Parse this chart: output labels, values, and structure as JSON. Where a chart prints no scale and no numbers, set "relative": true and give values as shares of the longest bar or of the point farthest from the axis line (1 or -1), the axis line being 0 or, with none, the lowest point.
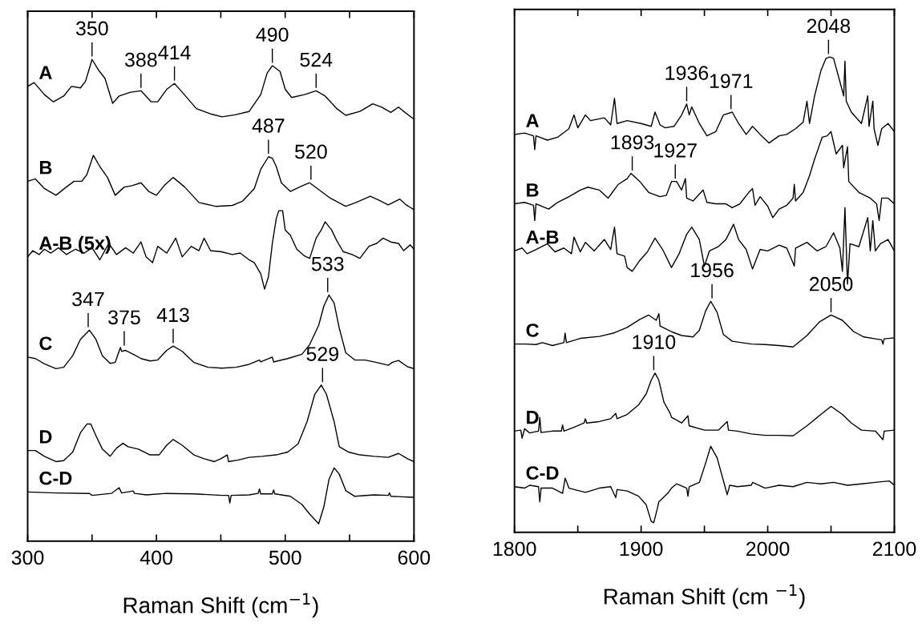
{
  "chart_data": [
    {
      "type": "line",
      "relative": true,
      "tick_labels": "x",
      "xlabel": "Raman Shift (cm$^{−1}$)",
      "xlim": [
        300,
        600
      ],
      "xticks": [
        300,
        {
          "value": 350,
          "label": null
        },
        400,
        {
          "value": 450,
          "label": null
        },
        500,
        {
          "value": 550,
          "label": null
        },
        600
      ],
      "series": [
        {
          "name": "A",
          "color": "#000000",
          "x": [
            300,
            305,
            313,
            320,
            328,
            334,
            341,
            345,
            350,
            355,
            360,
            366,
            371,
            380,
            388,
            396,
            401,
            408,
            414,
            420,
            431,
            442,
            451,
            461,
            472,
            481,
            486,
            490,
            496,
            500,
            505,
            515,
            524,
            531,
            540,
            547,
            558,
            568,
            575,
            582,
            588,
            593,
            600
          ],
          "values": [
            0.944,
            0.952,
            0.927,
            0.912,
            0.924,
            0.944,
            0.941,
            0.955,
            1.0,
            0.978,
            0.961,
            0.909,
            0.924,
            0.932,
            0.935,
            0.912,
            0.912,
            0.938,
            0.95,
            0.932,
            0.898,
            0.887,
            0.881,
            0.885,
            0.892,
            0.927,
            0.972,
            0.987,
            0.975,
            0.938,
            0.921,
            0.927,
            0.935,
            0.924,
            0.898,
            0.884,
            0.892,
            0.908,
            0.901,
            0.89,
            0.901,
            0.89,
            0.876
          ]
        },
        {
          "name": "B",
          "color": "#000000",
          "x": [
            300,
            306,
            313,
            322,
            330,
            336,
            342,
            346,
            351,
            356,
            362,
            368,
            375,
            381,
            388,
            394,
            400,
            406,
            413,
            422,
            433,
            446,
            459,
            467,
            476,
            481,
            487,
            490,
            493,
            497,
            504,
            511,
            519,
            525,
            535,
            547,
            555,
            566,
            572,
            580,
            589,
            594,
            600
          ],
          "values": [
            0.747,
            0.752,
            0.732,
            0.718,
            0.735,
            0.747,
            0.747,
            0.761,
            0.801,
            0.778,
            0.755,
            0.718,
            0.735,
            0.738,
            0.744,
            0.726,
            0.718,
            0.738,
            0.755,
            0.735,
            0.703,
            0.695,
            0.697,
            0.706,
            0.732,
            0.772,
            0.798,
            0.795,
            0.778,
            0.744,
            0.726,
            0.735,
            0.744,
            0.732,
            0.712,
            0.695,
            0.703,
            0.716,
            0.709,
            0.698,
            0.71,
            0.698,
            0.688
          ]
        },
        {
          "name": "A-B (5x)",
          "color": "#000000",
          "x": [
            300,
            304,
            309,
            313,
            318,
            324,
            330,
            337,
            344,
            350,
            356,
            363,
            369,
            376,
            382,
            388,
            392,
            397,
            401,
            408,
            415,
            420,
            427,
            433,
            437,
            442,
            450,
            459,
            465,
            472,
            476,
            481,
            484,
            487,
            490,
            493,
            495,
            498,
            500,
            504,
            509,
            515,
            519,
            524,
            528,
            531,
            536,
            540,
            545,
            552,
            558,
            565,
            571,
            576,
            582,
            588,
            592,
            597,
            600
          ],
          "values": [
            0.59,
            0.603,
            0.595,
            0.606,
            0.598,
            0.609,
            0.595,
            0.606,
            0.598,
            0.609,
            0.584,
            0.618,
            0.595,
            0.609,
            0.598,
            0.621,
            0.59,
            0.578,
            0.612,
            0.598,
            0.629,
            0.59,
            0.612,
            0.603,
            0.629,
            0.603,
            0.601,
            0.595,
            0.598,
            0.584,
            0.578,
            0.555,
            0.523,
            0.549,
            0.618,
            0.669,
            0.686,
            0.686,
            0.646,
            0.635,
            0.606,
            0.592,
            0.587,
            0.629,
            0.646,
            0.663,
            0.646,
            0.624,
            0.601,
            0.595,
            0.587,
            0.612,
            0.618,
            0.629,
            0.621,
            0.618,
            0.603,
            0.615,
            0.606
          ]
        },
        {
          "name": "C",
          "color": "#000000",
          "x": [
            300,
            306,
            313,
            322,
            328,
            335,
            341,
            348,
            353,
            358,
            364,
            368,
            372,
            373,
            376,
            382,
            388,
            395,
            401,
            408,
            413,
            420,
            429,
            440,
            451,
            462,
            472,
            480,
            481,
            490,
            491,
            502,
            513,
            519,
            526,
            530,
            534,
            538,
            542,
            547,
            554,
            562,
            571,
            580,
            583,
            588,
            595,
            600
          ],
          "values": [
            0.382,
            0.379,
            0.368,
            0.358,
            0.361,
            0.385,
            0.419,
            0.438,
            0.419,
            0.385,
            0.369,
            0.371,
            0.402,
            0.394,
            0.396,
            0.388,
            0.379,
            0.374,
            0.376,
            0.396,
            0.405,
            0.394,
            0.371,
            0.361,
            0.359,
            0.361,
            0.367,
            0.376,
            0.372,
            0.382,
            0.372,
            0.379,
            0.388,
            0.408,
            0.448,
            0.488,
            0.511,
            0.494,
            0.442,
            0.391,
            0.376,
            0.376,
            0.371,
            0.365,
            0.371,
            0.375,
            0.362,
            0.358
          ]
        },
        {
          "name": "D",
          "color": "#000000",
          "x": [
            300,
            306,
            313,
            322,
            328,
            335,
            341,
            346,
            349,
            353,
            358,
            364,
            369,
            374,
            378,
            386,
            395,
            402,
            408,
            413,
            420,
            429,
            437,
            445,
            450,
            455,
            456,
            463,
            472,
            482,
            493,
            502,
            510,
            517,
            523,
            528,
            532,
            538,
            542,
            549,
            558,
            569,
            580,
            588,
            595,
            600
          ],
          "values": [
            0.188,
            0.188,
            0.176,
            0.165,
            0.167,
            0.185,
            0.225,
            0.243,
            0.243,
            0.219,
            0.191,
            0.176,
            0.193,
            0.203,
            0.196,
            0.191,
            0.179,
            0.179,
            0.199,
            0.211,
            0.199,
            0.179,
            0.171,
            0.165,
            0.171,
            0.179,
            0.165,
            0.168,
            0.174,
            0.176,
            0.179,
            0.185,
            0.202,
            0.248,
            0.305,
            0.324,
            0.305,
            0.248,
            0.196,
            0.185,
            0.179,
            0.176,
            0.174,
            0.182,
            0.171,
            0.165
          ]
        },
        {
          "name": "C-D",
          "color": "#000000",
          "x": [
            300,
            322,
            348,
            350,
            365,
            371,
            373,
            382,
            383,
            392,
            408,
            429,
            451,
            456,
            457,
            458,
            472,
            479,
            480,
            481,
            490,
            491,
            492,
            504,
            513,
            519,
            526,
            530,
            534,
            538,
            542,
            547,
            554,
            569,
            580,
            581,
            582,
            590,
            600
          ],
          "values": [
            0.102,
            0.1,
            0.099,
            0.095,
            0.099,
            0.111,
            0.1,
            0.104,
            0.099,
            0.096,
            0.099,
            0.098,
            0.095,
            0.095,
            0.079,
            0.095,
            0.096,
            0.099,
            0.108,
            0.098,
            0.098,
            0.106,
            0.098,
            0.093,
            0.076,
            0.056,
            0.036,
            0.071,
            0.128,
            0.152,
            0.139,
            0.105,
            0.093,
            0.096,
            0.095,
            0.1,
            0.093,
            0.092,
            0.091
          ]
        }
      ],
      "annotations": [
        {
          "text": "350",
          "x": 350,
          "y": 1.0
        },
        {
          "text": "388",
          "x": 388,
          "y": 0.935
        },
        {
          "text": "414",
          "x": 414,
          "y": 0.95
        },
        {
          "text": "490",
          "x": 490,
          "y": 0.987
        },
        {
          "text": "524",
          "x": 524,
          "y": 0.935
        },
        {
          "text": "487",
          "x": 487,
          "y": 0.798
        },
        {
          "text": "520",
          "x": 520,
          "y": 0.744
        },
        {
          "text": "347",
          "x": 347,
          "y": 0.438
        },
        {
          "text": "375",
          "x": 375,
          "y": 0.4
        },
        {
          "text": "413",
          "x": 413,
          "y": 0.405
        },
        {
          "text": "533",
          "x": 533,
          "y": 0.511
        },
        {
          "text": "529",
          "x": 529,
          "y": 0.324
        }
      ]
    },
    {
      "type": "line",
      "relative": true,
      "tick_labels": "x",
      "xlabel": "Raman Shift (cm $^{−1}$)",
      "xlim": [
        1800,
        2100
      ],
      "xticks": [
        1800,
        {
          "value": 1850,
          "label": null
        },
        1900,
        {
          "value": 1950,
          "label": null
        },
        2000,
        {
          "value": 2050,
          "label": null
        },
        2100
      ],
      "series": [
        {
          "name": "A",
          "color": "#000000",
          "x": [
            1800,
            1808,
            1815,
            1816,
            1817,
            1826,
            1834,
            1843,
            1847,
            1850,
            1856,
            1860,
            1871,
            1876,
            1879,
            1881,
            1889,
            1900,
            1908,
            1911,
            1915,
            1919,
            1926,
            1932,
            1936,
            1938,
            1940,
            1946,
            1952,
            1959,
            1965,
            1972,
            1977,
            1983,
            1988,
            1994,
            2001,
            2009,
            2015,
            2022,
            2028,
            2031,
            2033,
            2037,
            2042,
            2046,
            2049,
            2052,
            2057,
            2060,
            2061,
            2062,
            2066,
            2074,
            2079,
            2080,
            2083,
            2084,
            2087,
            2090,
            2095,
            2100
          ],
          "values": [
            0.837,
            0.84,
            0.834,
            0.805,
            0.834,
            0.825,
            0.831,
            0.849,
            0.878,
            0.851,
            0.878,
            0.866,
            0.872,
            0.857,
            0.913,
            0.86,
            0.866,
            0.86,
            0.854,
            0.884,
            0.857,
            0.851,
            0.854,
            0.878,
            0.901,
            0.878,
            0.895,
            0.86,
            0.834,
            0.843,
            0.878,
            0.884,
            0.86,
            0.837,
            0.854,
            0.837,
            0.819,
            0.834,
            0.837,
            0.849,
            0.863,
            0.907,
            0.86,
            0.918,
            0.971,
            0.997,
            1.0,
            0.997,
            0.948,
            0.918,
            0.991,
            0.907,
            0.884,
            0.86,
            0.918,
            0.854,
            0.907,
            0.849,
            0.814,
            0.849,
            0.86,
            0.843
          ]
        },
        {
          "name": "B",
          "color": "#000000",
          "x": [
            1800,
            1808,
            1815,
            1816,
            1817,
            1827,
            1834,
            1843,
            1852,
            1858,
            1867,
            1874,
            1882,
            1889,
            1892,
            1899,
            1906,
            1915,
            1920,
            1924,
            1928,
            1932,
            1935,
            1936,
            1941,
            1949,
            1952,
            1959,
            1967,
            1972,
            1978,
            1985,
            1988,
            1990,
            1994,
            2000,
            2004,
            2009,
            2015,
            2020,
            2021,
            2022,
            2028,
            2033,
            2037,
            2043,
            2047,
            2050,
            2054,
            2059,
            2060,
            2063,
            2064,
            2072,
            2081,
            2086,
            2088,
            2090,
            2095,
            2100
          ],
          "values": [
            0.691,
            0.694,
            0.688,
            0.656,
            0.691,
            0.68,
            0.694,
            0.706,
            0.72,
            0.726,
            0.72,
            0.703,
            0.732,
            0.744,
            0.755,
            0.738,
            0.715,
            0.706,
            0.709,
            0.738,
            0.738,
            0.72,
            0.744,
            0.703,
            0.697,
            0.72,
            0.694,
            0.691,
            0.691,
            0.683,
            0.691,
            0.715,
            0.723,
            0.688,
            0.706,
            0.686,
            0.662,
            0.68,
            0.688,
            0.703,
            0.732,
            0.697,
            0.715,
            0.75,
            0.785,
            0.831,
            0.834,
            0.843,
            0.796,
            0.814,
            0.767,
            0.811,
            0.738,
            0.715,
            0.703,
            0.691,
            0.656,
            0.703,
            0.703,
            0.691
          ]
        },
        {
          "name": "A-B",
          "color": "#000000",
          "x": [
            1800,
            1806,
            1810,
            1817,
            1826,
            1832,
            1839,
            1845,
            1847,
            1852,
            1856,
            1863,
            1871,
            1876,
            1879,
            1881,
            1887,
            1889,
            1893,
            1899,
            1905,
            1911,
            1917,
            1924,
            1930,
            1936,
            1940,
            1946,
            1950,
            1954,
            1961,
            1967,
            1973,
            1977,
            1983,
            1988,
            1994,
            2000,
            2009,
            2015,
            2021,
            2022,
            2031,
            2039,
            2046,
            2052,
            2057,
            2059,
            2061,
            2063,
            2065,
            2072,
            2079,
            2081,
            2083,
            2085,
            2089,
            2095,
            2100
          ],
          "values": [
            0.592,
            0.598,
            0.586,
            0.595,
            0.607,
            0.59,
            0.598,
            0.586,
            0.621,
            0.59,
            0.61,
            0.592,
            0.616,
            0.595,
            0.642,
            0.586,
            0.581,
            0.557,
            0.549,
            0.572,
            0.59,
            0.619,
            0.595,
            0.557,
            0.586,
            0.627,
            0.642,
            0.616,
            0.56,
            0.592,
            0.601,
            0.616,
            0.648,
            0.616,
            0.595,
            0.554,
            0.595,
            0.592,
            0.604,
            0.598,
            0.56,
            0.598,
            0.61,
            0.592,
            0.601,
            0.63,
            0.598,
            0.549,
            0.683,
            0.522,
            0.607,
            0.601,
            0.662,
            0.592,
            0.656,
            0.592,
            0.607,
            0.616,
            0.592
          ]
        },
        {
          "name": "C",
          "color": "#000000",
          "x": [
            1800,
            1808,
            1817,
            1822,
            1830,
            1839,
            1840,
            1841,
            1852,
            1867,
            1878,
            1889,
            1899,
            1906,
            1912,
            1914,
            1915,
            1924,
            1932,
            1941,
            1946,
            1951,
            1955,
            1960,
            1965,
            1972,
            1987,
            1998,
            2009,
            2020,
            2031,
            2041,
            2050,
            2059,
            2068,
            2076,
            2085,
            2090,
            2091,
            2092,
            2100
          ],
          "values": [
            0.396,
            0.396,
            0.395,
            0.399,
            0.393,
            0.399,
            0.419,
            0.399,
            0.408,
            0.412,
            0.419,
            0.431,
            0.448,
            0.457,
            0.446,
            0.46,
            0.434,
            0.422,
            0.414,
            0.411,
            0.425,
            0.466,
            0.486,
            0.463,
            0.416,
            0.402,
            0.396,
            0.395,
            0.393,
            0.39,
            0.414,
            0.443,
            0.457,
            0.446,
            0.422,
            0.411,
            0.407,
            0.405,
            0.396,
            0.407,
            0.409
          ]
        },
        {
          "name": "D",
          "color": "#000000",
          "x": [
            1800,
            1805,
            1806,
            1808,
            1812,
            1819,
            1820,
            1821,
            1830,
            1837,
            1838,
            1839,
            1847,
            1855,
            1856,
            1857,
            1867,
            1876,
            1880,
            1881,
            1889,
            1898,
            1904,
            1908,
            1911,
            1914,
            1918,
            1923,
            1924,
            1932,
            1937,
            1938,
            1950,
            1961,
            1968,
            1969,
            1976,
            1987,
            1998,
            2009,
            2020,
            2031,
            2042,
            2050,
            2059,
            2066,
            2074,
            2085,
            2091,
            2092,
            2100
          ],
          "values": [
            0.213,
            0.215,
            0.198,
            0.218,
            0.209,
            0.213,
            0.242,
            0.21,
            0.213,
            0.213,
            0.226,
            0.213,
            0.221,
            0.23,
            0.239,
            0.23,
            0.233,
            0.239,
            0.25,
            0.239,
            0.248,
            0.268,
            0.291,
            0.32,
            0.335,
            0.32,
            0.274,
            0.25,
            0.242,
            0.23,
            0.245,
            0.224,
            0.215,
            0.215,
            0.233,
            0.215,
            0.213,
            0.207,
            0.204,
            0.204,
            0.203,
            0.224,
            0.248,
            0.265,
            0.248,
            0.23,
            0.215,
            0.213,
            0.195,
            0.213,
            0.215
          ]
        },
        {
          "name": "C-D",
          "color": "#000000",
          "x": [
            1800,
            1808,
            1812,
            1819,
            1820,
            1821,
            1830,
            1838,
            1840,
            1843,
            1856,
            1867,
            1876,
            1880,
            1881,
            1889,
            1898,
            1904,
            1908,
            1910,
            1913,
            1914,
            1921,
            1924,
            1928,
            1936,
            1937,
            1938,
            1946,
            1951,
            1955,
            1960,
            1966,
            1968,
            1970,
            1976,
            1987,
            1988,
            1998,
            2009,
            2020,
            2031,
            2042,
            2052,
            2063,
            2074,
            2085,
            2096,
            2100
          ],
          "values": [
            0.096,
            0.093,
            0.099,
            0.096,
            0.064,
            0.093,
            0.093,
            0.082,
            0.114,
            0.093,
            0.084,
            0.093,
            0.096,
            0.073,
            0.09,
            0.087,
            0.076,
            0.058,
            0.023,
            0.02,
            0.052,
            0.064,
            0.082,
            0.093,
            0.102,
            0.093,
            0.076,
            0.096,
            0.105,
            0.146,
            0.181,
            0.157,
            0.099,
            0.079,
            0.099,
            0.096,
            0.099,
            0.105,
            0.093,
            0.099,
            0.096,
            0.105,
            0.102,
            0.105,
            0.099,
            0.102,
            0.105,
            0.108,
            0.099
          ]
        }
      ],
      "annotations": [
        {
          "text": "2048",
          "x": 2048,
          "y": 1.0
        },
        {
          "text": "1936",
          "x": 1936,
          "y": 0.901
        },
        {
          "text": "1971",
          "x": 1971,
          "y": 0.884
        },
        {
          "text": "1893",
          "x": 1893,
          "y": 0.755
        },
        {
          "text": "1927",
          "x": 1927,
          "y": 0.738
        },
        {
          "text": "1956",
          "x": 1956,
          "y": 0.486
        },
        {
          "text": "2050",
          "x": 2050,
          "y": 0.457
        },
        {
          "text": "1910",
          "x": 1910,
          "y": 0.335
        }
      ]
    }
  ]
}
